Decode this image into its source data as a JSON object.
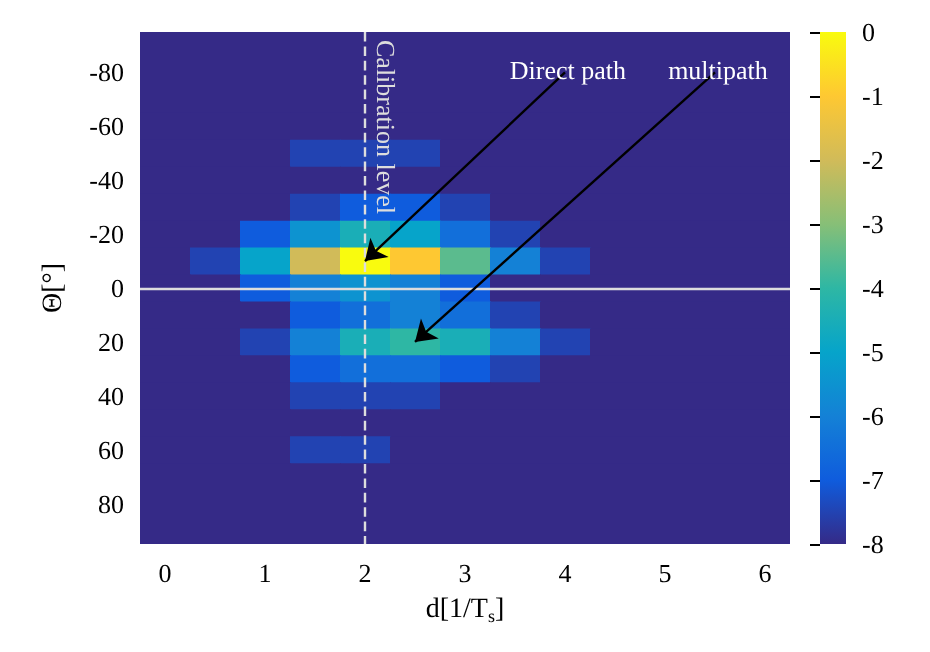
{
  "chart_data": {
    "type": "heatmap",
    "xlabel": "d[1/T$_{s}$]",
    "ylabel": "Θ[°]",
    "categories": [
      "0",
      null,
      "1",
      null,
      "2",
      null,
      "3",
      null,
      "4",
      null,
      "5",
      null,
      "6"
    ],
    "y_categories": [
      null,
      "-80",
      null,
      "-60",
      null,
      "-40",
      null,
      "-20",
      null,
      "0",
      null,
      "20",
      null,
      "40",
      null,
      "60",
      null,
      "80",
      null
    ],
    "clim": [
      -8,
      0
    ],
    "cticks": [
      -8,
      -7,
      -6,
      -5,
      -4,
      -3,
      -2,
      -1,
      0
    ],
    "cells": [
      [
        -8,
        -8,
        -8,
        -8,
        -8,
        -8,
        -8,
        -8,
        -8,
        -8,
        -8,
        -8,
        -8
      ],
      [
        -8,
        -8,
        -8,
        -8,
        -8,
        -8,
        -8,
        -8,
        -8,
        -8,
        -8,
        -8,
        -8
      ],
      [
        -8,
        -8,
        -8,
        -8,
        -8,
        -8,
        -8,
        -8,
        -8,
        -8,
        -8,
        -8,
        -8
      ],
      [
        -8,
        -8,
        -8,
        -8,
        -8,
        -8,
        -8,
        -8,
        -8,
        -8,
        -8,
        -8,
        -8
      ],
      [
        -8,
        -8,
        -8,
        -7.5,
        -7.5,
        -7.5,
        -8,
        -8,
        -8,
        -8,
        -8,
        -8,
        -8
      ],
      [
        -8,
        -8,
        -8,
        -8,
        -8,
        -8,
        -8,
        -8,
        -8,
        -8,
        -8,
        -8,
        -8
      ],
      [
        -8,
        -8,
        -8,
        -7.5,
        -7,
        -7,
        -7.5,
        -8,
        -8,
        -8,
        -8,
        -8,
        -8
      ],
      [
        -8,
        -8,
        -7,
        -5.5,
        -4.5,
        -5,
        -6.5,
        -7.5,
        -8,
        -8,
        -8,
        -8,
        -8
      ],
      [
        -8,
        -7.5,
        -5,
        -2,
        0,
        -1,
        -3.5,
        -6,
        -7.5,
        -8,
        -8,
        -8,
        -8
      ],
      [
        -8,
        -8,
        -7,
        -6,
        -5.5,
        -6,
        -7,
        -8,
        -8,
        -8,
        -8,
        -8,
        -8
      ],
      [
        -8,
        -8,
        -8,
        -7,
        -6.5,
        -6,
        -6.5,
        -7.5,
        -8,
        -8,
        -8,
        -8,
        -8
      ],
      [
        -8,
        -8,
        -7.5,
        -6,
        -4.5,
        -4,
        -4.5,
        -6,
        -7.5,
        -8,
        -8,
        -8,
        -8
      ],
      [
        -8,
        -8,
        -8,
        -7,
        -6.5,
        -6.5,
        -7,
        -7.5,
        -8,
        -8,
        -8,
        -8,
        -8
      ],
      [
        -8,
        -8,
        -8,
        -7.5,
        -7.5,
        -7.5,
        -8,
        -8,
        -8,
        -8,
        -8,
        -8,
        -8
      ],
      [
        -8,
        -8,
        -8,
        -8,
        -8,
        -8,
        -8,
        -8,
        -8,
        -8,
        -8,
        -8,
        -8
      ],
      [
        -8,
        -8,
        -8,
        -7.5,
        -7.5,
        -8,
        -8,
        -8,
        -8,
        -8,
        -8,
        -8,
        -8
      ],
      [
        -8,
        -8,
        -8,
        -8,
        -8,
        -8,
        -8,
        -8,
        -8,
        -8,
        -8,
        -8,
        -8
      ],
      [
        -8,
        -8,
        -8,
        -8,
        -8,
        -8,
        -8,
        -8,
        -8,
        -8,
        -8,
        -8,
        -8
      ],
      [
        -8,
        -8,
        -8,
        -8,
        -8,
        -8,
        -8,
        -8,
        -8,
        -8,
        -8,
        -8,
        -8
      ]
    ],
    "ref_lines": [
      {
        "axis": "x",
        "value": "2",
        "label": "Calibration level",
        "color": "#dddddd",
        "line_style": "dashed"
      },
      {
        "axis": "y",
        "value": "0",
        "label": null,
        "color": "#dddddd",
        "line_style": "solid"
      }
    ],
    "annotations": [
      "Direct path",
      "multipath"
    ]
  }
}
